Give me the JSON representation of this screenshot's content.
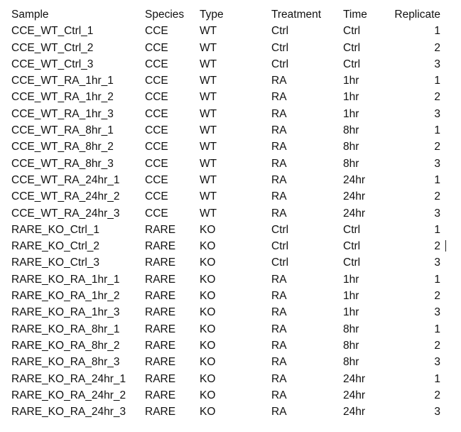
{
  "table": {
    "headers": [
      "Sample",
      "Species",
      "Type",
      "Treatment",
      "Time",
      "Replicate"
    ],
    "rows": [
      [
        "CCE_WT_Ctrl_1",
        "CCE",
        "WT",
        "Ctrl",
        "Ctrl",
        "1"
      ],
      [
        "CCE_WT_Ctrl_2",
        "CCE",
        "WT",
        "Ctrl",
        "Ctrl",
        "2"
      ],
      [
        "CCE_WT_Ctrl_3",
        "CCE",
        "WT",
        "Ctrl",
        "Ctrl",
        "3"
      ],
      [
        "CCE_WT_RA_1hr_1",
        "CCE",
        "WT",
        "RA",
        "1hr",
        "1"
      ],
      [
        "CCE_WT_RA_1hr_2",
        "CCE",
        "WT",
        "RA",
        "1hr",
        "2"
      ],
      [
        "CCE_WT_RA_1hr_3",
        "CCE",
        "WT",
        "RA",
        "1hr",
        "3"
      ],
      [
        "CCE_WT_RA_8hr_1",
        "CCE",
        "WT",
        "RA",
        "8hr",
        "1"
      ],
      [
        "CCE_WT_RA_8hr_2",
        "CCE",
        "WT",
        "RA",
        "8hr",
        "2"
      ],
      [
        "CCE_WT_RA_8hr_3",
        "CCE",
        "WT",
        "RA",
        "8hr",
        "3"
      ],
      [
        "CCE_WT_RA_24hr_1",
        "CCE",
        "WT",
        "RA",
        "24hr",
        "1"
      ],
      [
        "CCE_WT_RA_24hr_2",
        "CCE",
        "WT",
        "RA",
        "24hr",
        "2"
      ],
      [
        "CCE_WT_RA_24hr_3",
        "CCE",
        "WT",
        "RA",
        "24hr",
        "3"
      ],
      [
        "RARE_KO_Ctrl_1",
        "RARE",
        "KO",
        "Ctrl",
        "Ctrl",
        "1"
      ],
      [
        "RARE_KO_Ctrl_2",
        "RARE",
        "KO",
        "Ctrl",
        "Ctrl",
        "2"
      ],
      [
        "RARE_KO_Ctrl_3",
        "RARE",
        "KO",
        "Ctrl",
        "Ctrl",
        "3"
      ],
      [
        "RARE_KO_RA_1hr_1",
        "RARE",
        "KO",
        "RA",
        "1hr",
        "1"
      ],
      [
        "RARE_KO_RA_1hr_2",
        "RARE",
        "KO",
        "RA",
        "1hr",
        "2"
      ],
      [
        "RARE_KO_RA_1hr_3",
        "RARE",
        "KO",
        "RA",
        "1hr",
        "3"
      ],
      [
        "RARE_KO_RA_8hr_1",
        "RARE",
        "KO",
        "RA",
        "8hr",
        "1"
      ],
      [
        "RARE_KO_RA_8hr_2",
        "RARE",
        "KO",
        "RA",
        "8hr",
        "2"
      ],
      [
        "RARE_KO_RA_8hr_3",
        "RARE",
        "KO",
        "RA",
        "8hr",
        "3"
      ],
      [
        "RARE_KO_RA_24hr_1",
        "RARE",
        "KO",
        "RA",
        "24hr",
        "1"
      ],
      [
        "RARE_KO_RA_24hr_2",
        "RARE",
        "KO",
        "RA",
        "24hr",
        "2"
      ],
      [
        "RARE_KO_RA_24hr_3",
        "RARE",
        "KO",
        "RA",
        "24hr",
        "3"
      ]
    ]
  },
  "colors": {
    "text": "#111111",
    "background": "#ffffff"
  }
}
